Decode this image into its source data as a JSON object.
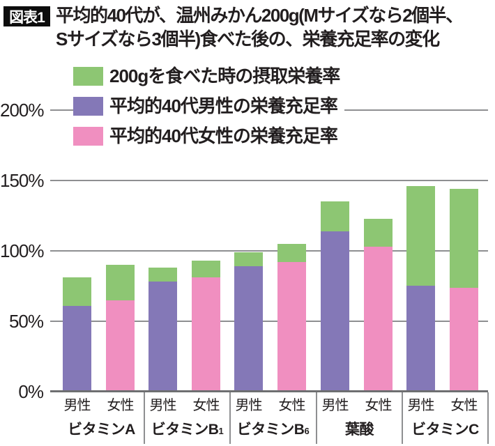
{
  "header": {
    "tag": "図表1",
    "title_line1": "平均的40代が、温州みかん200g(Mサイズなら2個半、",
    "title_line2": "Sサイズなら3個半)食べた後の、栄養充足率の変化"
  },
  "legend": {
    "items": [
      {
        "label": "200gを食べた時の摂取栄養率",
        "color": "#8DC673"
      },
      {
        "label": "平均的40代男性の栄養充足率",
        "color": "#8478B7"
      },
      {
        "label": "平均的40代女性の栄養充足率",
        "color": "#F08FC0"
      }
    ]
  },
  "y_axis": {
    "tick_labels": [
      "200%",
      "150%",
      "100%",
      "50%",
      "0%"
    ]
  },
  "chart_data": {
    "type": "bar",
    "stacked": true,
    "grid": true,
    "legend_position": "top-left",
    "unit": "%",
    "ylim": [
      0,
      200
    ],
    "y_tick_labels_top_to_bottom": [
      "200%",
      "150%",
      "100%",
      "50%",
      "0%"
    ],
    "sex_labels": [
      "男性",
      "女性"
    ],
    "series_legend": [
      "200gを食べた時の摂取栄養率",
      "平均的40代男性の栄養充足率",
      "平均的40代女性の栄養充足率"
    ],
    "colors": {
      "intake_after_200g": "#8DC673",
      "male_base": "#8478B7",
      "female_base": "#F08FC0"
    },
    "groups": [
      {
        "key": "vitamin-a",
        "category": "ビタミンA",
        "label_base": "ビタミンA",
        "label_sub": "",
        "male": {
          "base_pct": 61,
          "after_200g_pct": 81
        },
        "female": {
          "base_pct": 65,
          "after_200g_pct": 90
        }
      },
      {
        "key": "vitamin-b1",
        "category": "ビタミンB1",
        "label_base": "ビタミンB",
        "label_sub": "1",
        "male": {
          "base_pct": 78,
          "after_200g_pct": 88
        },
        "female": {
          "base_pct": 81,
          "after_200g_pct": 93
        }
      },
      {
        "key": "vitamin-b6",
        "category": "ビタミンB6",
        "label_base": "ビタミンB",
        "label_sub": "6",
        "male": {
          "base_pct": 89,
          "after_200g_pct": 99
        },
        "female": {
          "base_pct": 92,
          "after_200g_pct": 105
        }
      },
      {
        "key": "folate",
        "category": "葉酸",
        "label_base": "葉酸",
        "label_sub": "",
        "male": {
          "base_pct": 114,
          "after_200g_pct": 135
        },
        "female": {
          "base_pct": 103,
          "after_200g_pct": 123
        }
      },
      {
        "key": "vitamin-c",
        "category": "ビタミンC",
        "label_base": "ビタミンC",
        "label_sub": "",
        "male": {
          "base_pct": 75,
          "after_200g_pct": 146
        },
        "female": {
          "base_pct": 74,
          "after_200g_pct": 144
        }
      }
    ]
  }
}
